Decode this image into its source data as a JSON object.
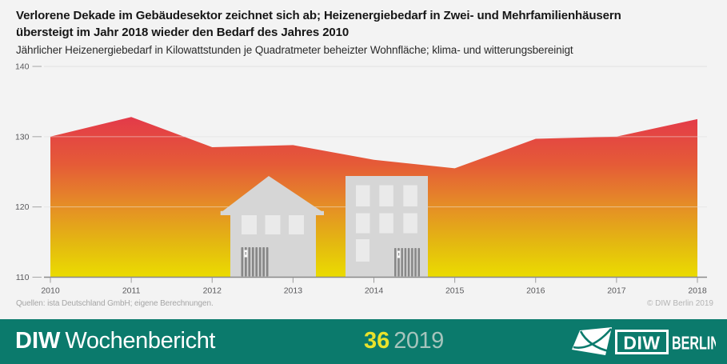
{
  "header": {
    "title_line1": "Verlorene Dekade im Gebäudesektor zeichnet sich ab; Heizenergiebedarf in Zwei- und Mehrfamilienhäusern",
    "title_line2": "übersteigt im Jahr 2018 wieder den Bedarf des Jahres 2010",
    "subtitle": "Jährlicher Heizenergiebedarf in Kilowattstunden je Quadratmeter beheizter Wohnfläche; klima- und witterungsbereinigt"
  },
  "chart_data": {
    "type": "area",
    "title": "Verlorene Dekade im Gebäudesektor zeichnet sich ab; Heizenergiebedarf in Zwei- und Mehrfamilienhäusern übersteigt im Jahr 2018 wieder den Bedarf des Jahres 2010",
    "subtitle": "Jährlicher Heizenergiebedarf in Kilowattstunden je Quadratmeter beheizter Wohnfläche; klima- und witterungsbereinigt",
    "x": [
      2010,
      2011,
      2012,
      2013,
      2014,
      2015,
      2016,
      2017,
      2018
    ],
    "values": [
      130.0,
      132.8,
      128.5,
      128.8,
      126.7,
      125.5,
      129.7,
      130.0,
      132.5
    ],
    "ylim": [
      110,
      140
    ],
    "yticks": [
      140,
      130,
      120,
      110
    ],
    "grid": true,
    "legend": false,
    "gradient": [
      {
        "offset": 0,
        "color": "#e3394a"
      },
      {
        "offset": 0.3,
        "color": "#e55b37"
      },
      {
        "offset": 0.55,
        "color": "#e58c27"
      },
      {
        "offset": 0.8,
        "color": "#e4ba10"
      },
      {
        "offset": 1,
        "color": "#ebdc00"
      }
    ]
  },
  "annotations": {
    "source": "Quellen: ista Deutschland GmbH; eigene Berechnungen.",
    "copyright": "© DIW Berlin 2019"
  },
  "footer": {
    "publication_bold": "DIW",
    "publication_name": "Wochenbericht",
    "issue_number": "36",
    "issue_year": "2019",
    "logo": {
      "diw": "DIW",
      "berlin": "BERLIN"
    },
    "colors": {
      "background": "#0b7a6c",
      "issue_number": "#e9e22c",
      "issue_year": "#a5c4bc"
    }
  }
}
